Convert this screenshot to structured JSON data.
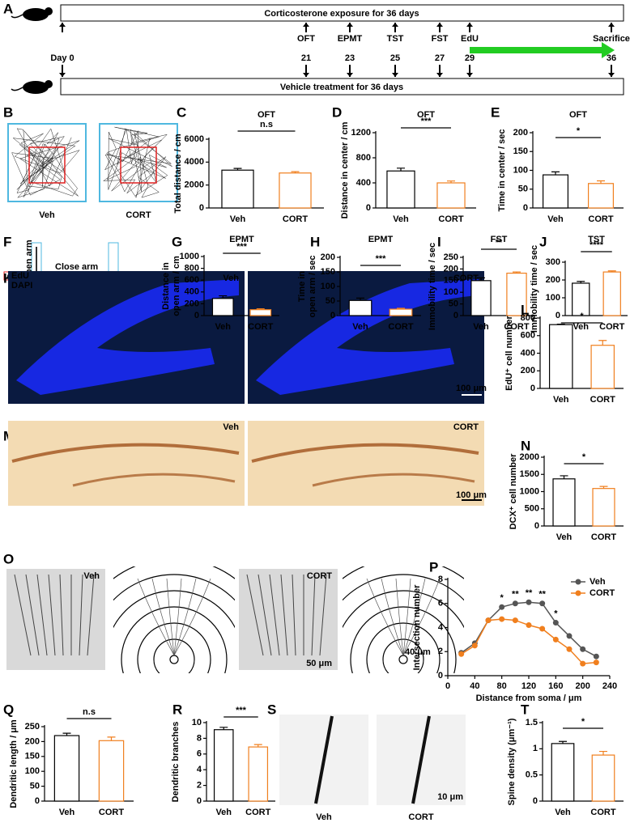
{
  "timeline": {
    "panel": "A",
    "top_bar": "Corticosterone exposure for 36 days",
    "bottom_bar": "Vehicle treatment for 36 days",
    "start": "Day 0",
    "events": [
      {
        "label": "OFT",
        "day": "21"
      },
      {
        "label": "EPMT",
        "day": "23"
      },
      {
        "label": "TST",
        "day": "25"
      },
      {
        "label": "FST",
        "day": "27"
      },
      {
        "label": "EdU",
        "day": "29",
        "color": "#22cc22"
      },
      {
        "label": "Sacrifice",
        "day": "36"
      }
    ]
  },
  "images": [
    {
      "panel": "B",
      "labels": [
        "Veh",
        "CORT"
      ]
    },
    {
      "panel": "F",
      "labels": [
        "Veh",
        "CORT"
      ],
      "notes": [
        "Open arm",
        "Close arm"
      ]
    },
    {
      "panel": "K",
      "labels": [
        "Veh",
        "CORT"
      ],
      "channels": [
        "EdU",
        "DAPI"
      ],
      "scale_bar": "100 μm"
    },
    {
      "panel": "M",
      "labels": [
        "Veh",
        "CORT"
      ],
      "scale_bar": "100 μm"
    },
    {
      "panel": "O",
      "labels": [
        "Veh",
        "CORT"
      ],
      "scale_bar": "50 μm",
      "ring_step": "40 μm"
    },
    {
      "panel": "S",
      "labels": [
        "Veh",
        "CORT"
      ],
      "scale_bar": "10 μm"
    }
  ],
  "chart_data": [
    {
      "panel": "C",
      "type": "bar",
      "title": "OFT",
      "ylabel": [
        "Total distance / cm"
      ],
      "categories": [
        "Veh",
        "CORT"
      ],
      "values": [
        3300,
        3050
      ],
      "errors": [
        150,
        120
      ],
      "colors": [
        "#000000",
        "#f07f1e"
      ],
      "ylim": [
        0,
        6000
      ],
      "yticks": [
        0,
        2000,
        4000,
        6000
      ],
      "significance": "n.s"
    },
    {
      "panel": "D",
      "type": "bar",
      "title": "OFT",
      "ylabel": [
        "Distance in center / cm"
      ],
      "categories": [
        "Veh",
        "CORT"
      ],
      "values": [
        590,
        400
      ],
      "errors": [
        45,
        30
      ],
      "colors": [
        "#000000",
        "#f07f1e"
      ],
      "ylim": [
        0,
        1200
      ],
      "yticks": [
        0,
        400,
        800,
        1200
      ],
      "significance": "***"
    },
    {
      "panel": "E",
      "type": "bar",
      "title": "OFT",
      "ylabel": [
        "Time in center / sec"
      ],
      "categories": [
        "Veh",
        "CORT"
      ],
      "values": [
        88,
        65
      ],
      "errors": [
        8,
        7
      ],
      "colors": [
        "#000000",
        "#f07f1e"
      ],
      "ylim": [
        0,
        200
      ],
      "yticks": [
        0,
        50,
        100,
        150,
        200
      ],
      "significance": "*"
    },
    {
      "panel": "G",
      "type": "bar",
      "title": "EPMT",
      "ylabel": [
        "Distance in",
        "open arm / cm"
      ],
      "categories": [
        "Veh",
        "CORT"
      ],
      "values": [
        290,
        100
      ],
      "errors": [
        45,
        15
      ],
      "colors": [
        "#000000",
        "#f07f1e"
      ],
      "ylim": [
        0,
        1000
      ],
      "yticks": [
        0,
        200,
        400,
        600,
        800,
        1000
      ],
      "significance": "***"
    },
    {
      "panel": "H",
      "type": "bar",
      "title": "EPMT",
      "ylabel": [
        "Time in",
        "open arm / sec"
      ],
      "categories": [
        "Veh",
        "CORT"
      ],
      "values": [
        52,
        22
      ],
      "errors": [
        8,
        3
      ],
      "colors": [
        "#000000",
        "#f07f1e"
      ],
      "ylim": [
        0,
        200
      ],
      "yticks": [
        0,
        50,
        100,
        150,
        200
      ],
      "significance": "***"
    },
    {
      "panel": "I",
      "type": "bar",
      "title": "FST",
      "ylabel": [
        "Immobility time / sec"
      ],
      "categories": [
        "Veh",
        "CORT"
      ],
      "values": [
        150,
        182
      ],
      "errors": [
        12,
        5
      ],
      "colors": [
        "#000000",
        "#f07f1e"
      ],
      "ylim": [
        0,
        250
      ],
      "yticks": [
        0,
        50,
        100,
        150,
        200,
        250
      ],
      "significance": "**"
    },
    {
      "panel": "J",
      "type": "bar",
      "title": "TST",
      "ylabel": [
        "Immobility time / sec"
      ],
      "categories": [
        "Veh",
        "CORT"
      ],
      "values": [
        182,
        245
      ],
      "errors": [
        10,
        6
      ],
      "colors": [
        "#000000",
        "#f07f1e"
      ],
      "ylim": [
        0,
        300
      ],
      "yticks": [
        0,
        100,
        200,
        300
      ],
      "significance": "****"
    },
    {
      "panel": "L",
      "type": "bar",
      "ylabel": [
        "EdU⁺ cell number"
      ],
      "categories": [
        "Veh",
        "CORT"
      ],
      "values": [
        725,
        490
      ],
      "errors": [
        5,
        55
      ],
      "colors": [
        "#000000",
        "#f07f1e"
      ],
      "ylim": [
        0,
        800
      ],
      "yticks": [
        0,
        200,
        400,
        600,
        800
      ],
      "significance": "*"
    },
    {
      "panel": "N",
      "type": "bar",
      "ylabel": [
        "DCX⁺ cell number"
      ],
      "categories": [
        "Veh",
        "CORT"
      ],
      "values": [
        1370,
        1090
      ],
      "errors": [
        90,
        60
      ],
      "colors": [
        "#000000",
        "#f07f1e"
      ],
      "ylim": [
        0,
        2000
      ],
      "yticks": [
        0,
        500,
        1000,
        1500,
        2000
      ],
      "significance": "*"
    },
    {
      "panel": "P",
      "type": "line",
      "xlabel": "Distance from soma / μm",
      "ylabel": [
        "Intersection number"
      ],
      "x": [
        20,
        40,
        60,
        80,
        100,
        120,
        140,
        160,
        180,
        200,
        220
      ],
      "series": [
        {
          "name": "Veh",
          "color": "#555555",
          "values": [
            1.9,
            2.7,
            4.6,
            5.7,
            6.0,
            6.1,
            6.0,
            4.4,
            3.3,
            2.2,
            1.6
          ]
        },
        {
          "name": "CORT",
          "color": "#f07f1e",
          "values": [
            1.8,
            2.5,
            4.6,
            4.7,
            4.6,
            4.2,
            3.9,
            3.0,
            2.2,
            1.0,
            1.1
          ]
        }
      ],
      "xlim": [
        0,
        240
      ],
      "xticks": [
        0,
        40,
        80,
        120,
        160,
        200,
        240
      ],
      "ylim": [
        0,
        8
      ],
      "yticks": [
        0,
        2,
        4,
        6,
        8
      ],
      "legend": "upper right",
      "annotations": [
        {
          "x": 80,
          "label": "*"
        },
        {
          "x": 100,
          "label": "**"
        },
        {
          "x": 120,
          "label": "**"
        },
        {
          "x": 140,
          "label": "**"
        },
        {
          "x": 160,
          "label": "*"
        }
      ]
    },
    {
      "panel": "Q",
      "type": "bar",
      "ylabel": [
        "Dendritic length / μm"
      ],
      "categories": [
        "Veh",
        "CORT"
      ],
      "values": [
        220,
        203
      ],
      "errors": [
        8,
        12
      ],
      "colors": [
        "#000000",
        "#f07f1e"
      ],
      "ylim": [
        0,
        250
      ],
      "yticks": [
        0,
        50,
        100,
        150,
        200,
        250
      ],
      "significance": "n.s"
    },
    {
      "panel": "R",
      "type": "bar",
      "ylabel": [
        "Dendritic branches"
      ],
      "categories": [
        "Veh",
        "CORT"
      ],
      "values": [
        9.1,
        6.9
      ],
      "errors": [
        0.3,
        0.3
      ],
      "colors": [
        "#000000",
        "#f07f1e"
      ],
      "ylim": [
        0,
        10
      ],
      "yticks": [
        0,
        2,
        4,
        6,
        8,
        10
      ],
      "significance": "***"
    },
    {
      "panel": "T",
      "type": "bar",
      "ylabel": [
        "Spine density (μm⁻¹)"
      ],
      "categories": [
        "Veh",
        "CORT"
      ],
      "values": [
        1.1,
        0.88
      ],
      "errors": [
        0.04,
        0.07
      ],
      "colors": [
        "#000000",
        "#f07f1e"
      ],
      "ylim": [
        0,
        1.5
      ],
      "yticks": [
        0,
        0.5,
        1,
        1.5
      ],
      "significance": "*"
    }
  ]
}
